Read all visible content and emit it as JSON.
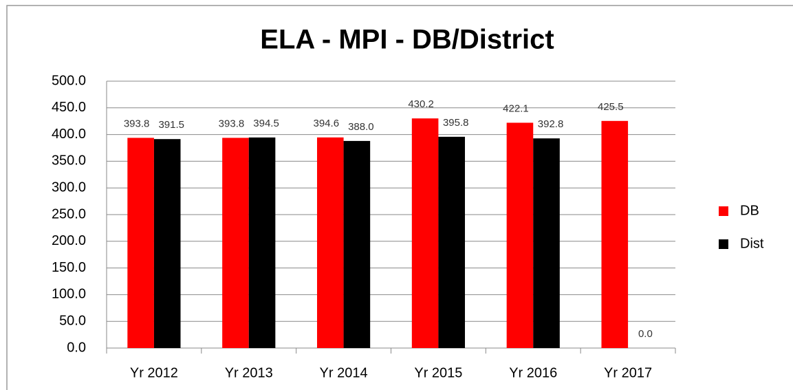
{
  "chart_data": {
    "type": "bar",
    "title": "ELA - MPI - DB/District",
    "categories": [
      "Yr 2012",
      "Yr 2013",
      "Yr 2014",
      "Yr 2015",
      "Yr 2016",
      "Yr 2017"
    ],
    "series": [
      {
        "name": "DB",
        "color": "#ff0000",
        "values": [
          393.8,
          393.8,
          394.6,
          430.2,
          422.1,
          425.5
        ],
        "value_labels": [
          "393.8",
          "393.8",
          "394.6",
          "430.2",
          "422.1",
          "425.5"
        ]
      },
      {
        "name": "Dist",
        "color": "#000000",
        "values": [
          391.5,
          394.5,
          388.0,
          395.8,
          392.8,
          0.0
        ],
        "value_labels": [
          "391.5",
          "394.5",
          "388.0",
          "395.8",
          "392.8",
          "0.0"
        ]
      }
    ],
    "ylim": [
      0,
      500
    ],
    "yticks": [
      {
        "value": 0,
        "label": "0.0"
      },
      {
        "value": 50,
        "label": "50.0"
      },
      {
        "value": 100,
        "label": "100.0"
      },
      {
        "value": 150,
        "label": "150.0"
      },
      {
        "value": 200,
        "label": "200.0"
      },
      {
        "value": 250,
        "label": "250.0"
      },
      {
        "value": 300,
        "label": "300.0"
      },
      {
        "value": 350,
        "label": "350.0"
      },
      {
        "value": 400,
        "label": "400.0"
      },
      {
        "value": 450,
        "label": "450.0"
      },
      {
        "value": 500,
        "label": "500.0"
      }
    ],
    "grid": true,
    "legend": "right"
  }
}
